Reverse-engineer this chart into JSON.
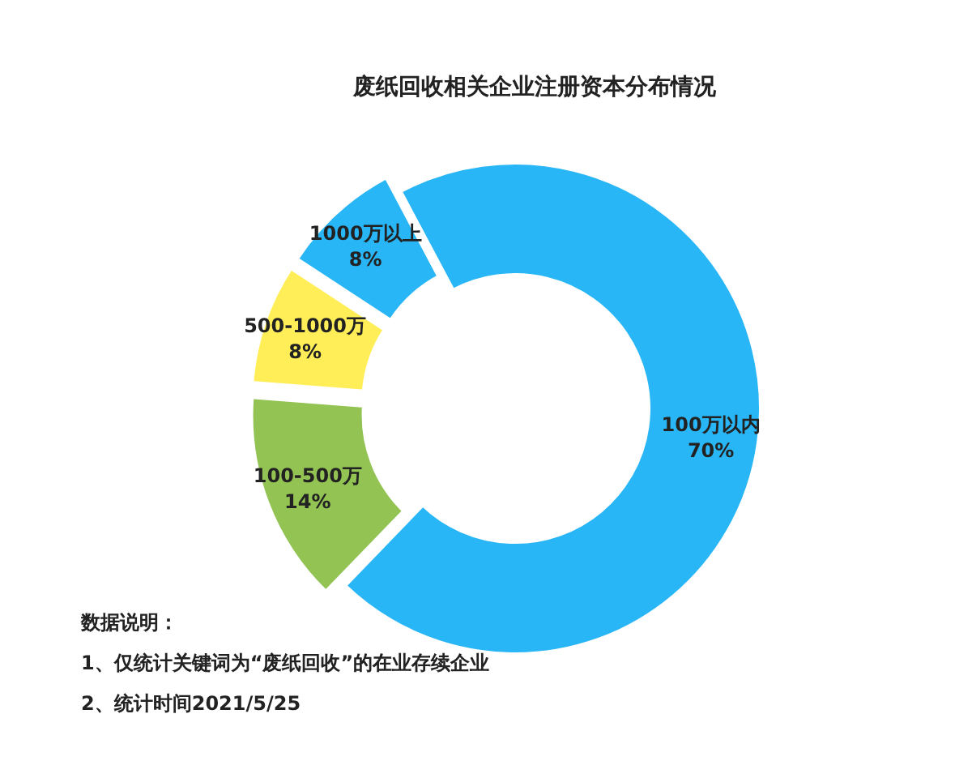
{
  "chart_data": {
    "type": "donut",
    "title": "废纸回收相关企业注册资本分布情况",
    "categories": [
      "100万以内",
      "100-500万",
      "500-1000万",
      "1000万以上"
    ],
    "values": [
      70,
      14,
      8,
      8
    ],
    "value_labels": [
      "70%",
      "14%",
      "8%",
      "8%"
    ],
    "colors": [
      "#29b6f6",
      "#92c353",
      "#ffee58",
      "#29b6f6"
    ],
    "annotations": [
      "数据说明：",
      "1、仅统计关键词为“废纸回收”的在业存续企业",
      "2、统计时间2021/5/25"
    ]
  }
}
